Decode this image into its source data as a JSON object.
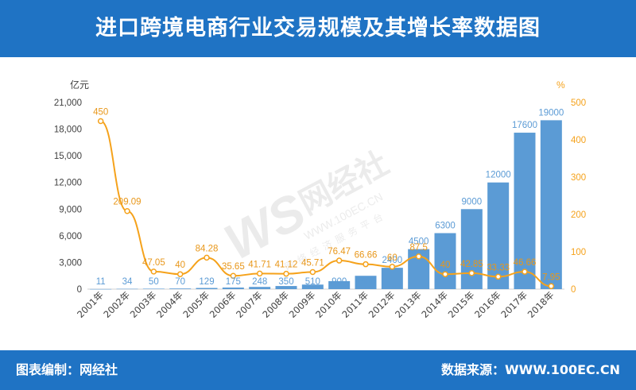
{
  "header": {
    "title": "进口跨境电商行业交易规模及其增长率数据图"
  },
  "footer": {
    "left": "图表编制：网经社",
    "right": "数据来源：WWW.100EC.CN"
  },
  "watermark": {
    "logo": "WS网经社",
    "url": "WWW.100EC.CN",
    "tagline": "网络经济服务平台"
  },
  "colors": {
    "header_bg": "#1f73c4",
    "bar": "#5b9bd5",
    "line": "#f5a21b",
    "bar_label": "#5b9bd5",
    "line_label": "#e8971a",
    "left_axis_text": "#404040",
    "right_axis_text": "#f5a21b"
  },
  "chart_data": {
    "type": "bar",
    "categories": [
      "2001年",
      "2002年",
      "2003年",
      "2004年",
      "2005年",
      "2006年",
      "2007年",
      "2008年",
      "2009年",
      "2010年",
      "2011年",
      "2012年",
      "2013年",
      "2014年",
      "2015年",
      "2016年",
      "2017年",
      "2018年"
    ],
    "series": [
      {
        "values": [
          11,
          34,
          50,
          70,
          129,
          175,
          248,
          350,
          510,
          900,
          1500,
          2400,
          4500,
          6300,
          9000,
          12000,
          17600,
          19000
        ],
        "labels": [
          "11",
          "34",
          "50",
          "70",
          "129",
          "175",
          "248",
          "350",
          "510",
          "900",
          "1500",
          "2400",
          "4500",
          "6300",
          "9000",
          "12000",
          "17600",
          "19000"
        ]
      },
      {
        "values": [
          450,
          209.09,
          47.05,
          40,
          84.28,
          35.65,
          41.71,
          41.12,
          45.71,
          76.47,
          66.66,
          60,
          87.5,
          40,
          42.85,
          33.33,
          46.66,
          7.95
        ],
        "labels": [
          "450",
          "209.09",
          "47.05",
          "40",
          "84.28",
          "35.65",
          "41.71",
          "41.12",
          "45.71",
          "76.47",
          "66.66",
          "60",
          "87.5",
          "40",
          "42.85",
          "33.33",
          "46.66",
          "7.95"
        ]
      }
    ],
    "ylabel": "亿元",
    "y2label": "%",
    "ylim": [
      0,
      21000
    ],
    "y2lim": [
      0,
      500
    ],
    "yticks": [
      "0",
      "3,000",
      "6,000",
      "9,000",
      "12,000",
      "15,000",
      "18,000",
      "21,000"
    ],
    "y2ticks": [
      "0",
      "100",
      "200",
      "300",
      "400",
      "500"
    ]
  }
}
